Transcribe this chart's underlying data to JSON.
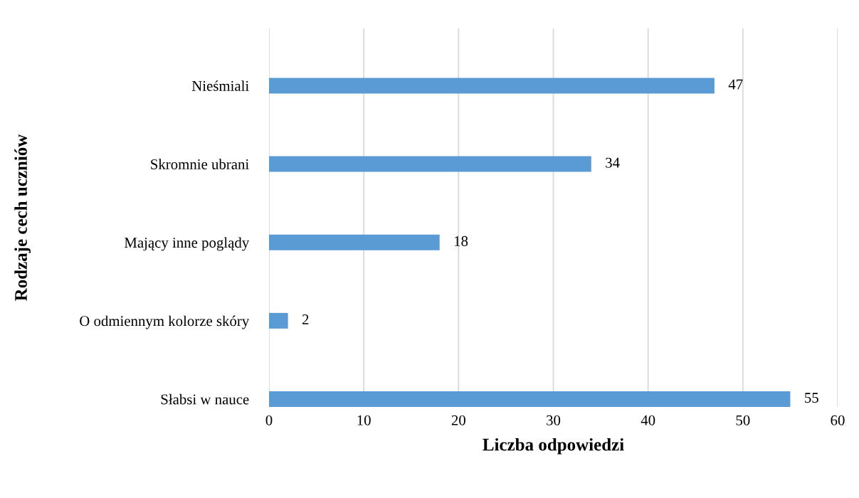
{
  "chart_data": {
    "type": "bar",
    "orientation": "horizontal",
    "xlabel": "Liczba odpowiedzi",
    "ylabel": "Rodzaje cech uczniów",
    "categories": [
      "Nieśmiali",
      "Skromnie ubrani",
      "Mający inne poglądy",
      "O odmiennym kolorze skóry",
      "Słabsi w nauce"
    ],
    "values": [
      47,
      34,
      18,
      2,
      55
    ],
    "color": "#5b9bd5",
    "xlim": [
      0,
      60
    ],
    "xticks": [
      0,
      10,
      20,
      30,
      40,
      50,
      60
    ],
    "grid": "x",
    "data_labels": true,
    "legend": false
  }
}
